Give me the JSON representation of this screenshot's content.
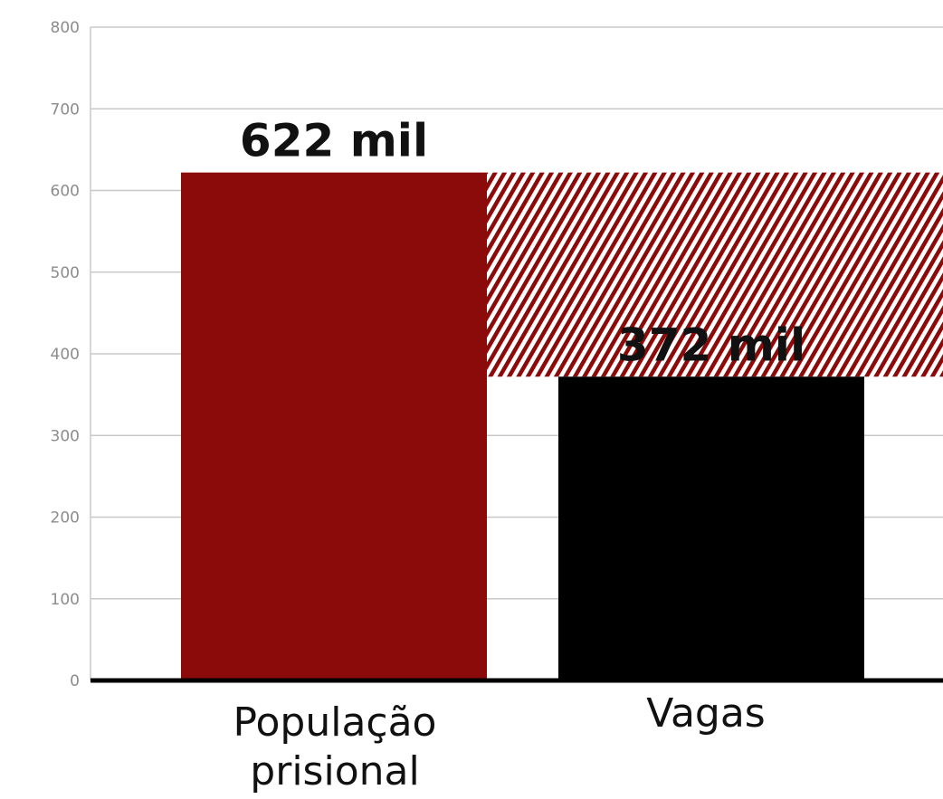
{
  "chart_data": {
    "type": "bar",
    "categories": [
      [
        "População",
        "prisional"
      ],
      [
        "Vagas"
      ]
    ],
    "values": [
      622,
      372
    ],
    "value_labels": [
      "622 mil",
      "372 mil"
    ],
    "bar_colors": [
      "#8b0a0a",
      "#000000"
    ],
    "deficit_pattern_colors": [
      "#8b0a0a",
      "#ffffff"
    ],
    "deficit_range": [
      372,
      622
    ],
    "ylim": [
      0,
      800
    ],
    "yticks": [
      "0",
      "100",
      "200",
      "300",
      "400",
      "500",
      "600",
      "700",
      "800"
    ],
    "grid": true,
    "title": "",
    "xlabel": "",
    "ylabel": ""
  }
}
